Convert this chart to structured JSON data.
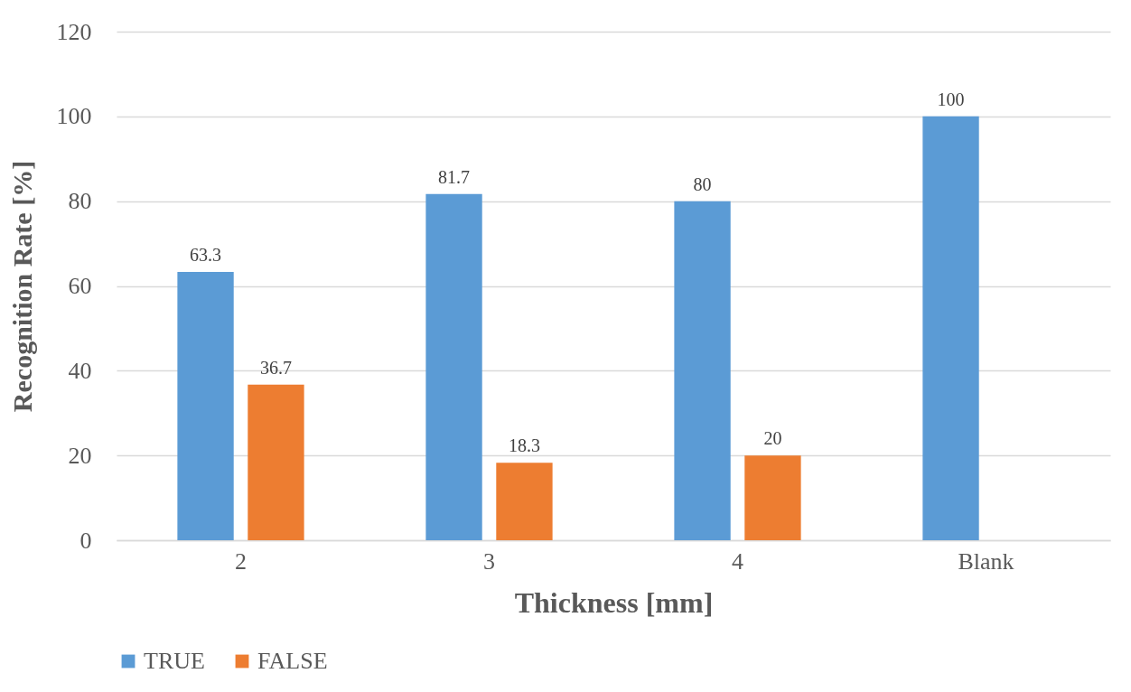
{
  "chart_data": {
    "type": "bar",
    "xlabel": "Thickness  [mm]",
    "ylabel": "Recognition Rate [%]",
    "categories": [
      "2",
      "3",
      "4",
      "Blank"
    ],
    "series": [
      {
        "name": "TRUE",
        "color": "#5b9bd5",
        "values": [
          63.3,
          81.7,
          80,
          100
        ]
      },
      {
        "name": "FALSE",
        "color": "#ed7d31",
        "values": [
          36.7,
          18.3,
          20,
          null
        ]
      }
    ],
    "ylim": [
      0,
      120
    ],
    "yticks": [
      0,
      20,
      40,
      60,
      80,
      100,
      120
    ],
    "grid": "y",
    "legend": "bottom",
    "data_labels": true
  }
}
